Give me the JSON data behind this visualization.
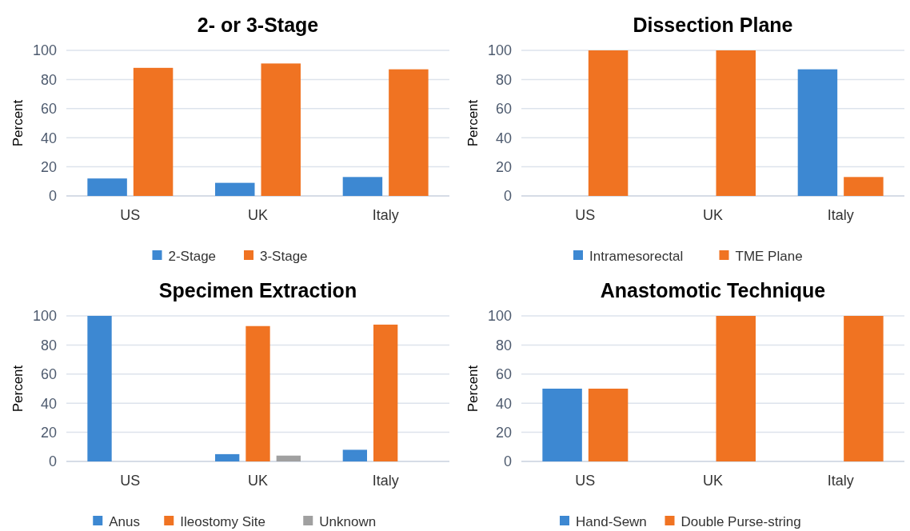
{
  "chart_data": [
    {
      "type": "bar",
      "title": "2- or 3-Stage",
      "ylabel": "Percent",
      "categories": [
        "US",
        "UK",
        "Italy"
      ],
      "series": [
        {
          "name": "2-Stage",
          "color": "#3d88d2",
          "values": [
            12,
            9,
            13
          ]
        },
        {
          "name": "3-Stage",
          "color": "#f07322",
          "values": [
            88,
            91,
            87
          ]
        }
      ],
      "ylim": [
        0,
        100
      ],
      "yticks": [
        0,
        20,
        40,
        60,
        80,
        100
      ],
      "grid": "y",
      "legend": "bottom"
    },
    {
      "type": "bar",
      "title": "Dissection Plane",
      "ylabel": "Percent",
      "categories": [
        "US",
        "UK",
        "Italy"
      ],
      "series": [
        {
          "name": "Intramesorectal",
          "color": "#3d88d2",
          "values": [
            0,
            0,
            87
          ]
        },
        {
          "name": "TME Plane",
          "color": "#f07322",
          "values": [
            100,
            100,
            13
          ]
        }
      ],
      "ylim": [
        0,
        100
      ],
      "yticks": [
        0,
        20,
        40,
        60,
        80,
        100
      ],
      "grid": "y",
      "legend": "bottom"
    },
    {
      "type": "bar",
      "title": "Specimen Extraction",
      "ylabel": "Percent",
      "categories": [
        "US",
        "UK",
        "Italy"
      ],
      "series": [
        {
          "name": "Anus",
          "color": "#3d88d2",
          "values": [
            100,
            5,
            8
          ]
        },
        {
          "name": "Ileostomy Site",
          "color": "#f07322",
          "values": [
            0,
            93,
            94
          ]
        },
        {
          "name": "Unknown",
          "color": "#a0a0a0",
          "values": [
            0,
            4,
            0
          ]
        }
      ],
      "ylim": [
        0,
        100
      ],
      "yticks": [
        0,
        20,
        40,
        60,
        80,
        100
      ],
      "grid": "y",
      "legend": "bottom"
    },
    {
      "type": "bar",
      "title": "Anastomotic Technique",
      "ylabel": "Percent",
      "categories": [
        "US",
        "UK",
        "Italy"
      ],
      "series": [
        {
          "name": "Hand-Sewn",
          "color": "#3d88d2",
          "values": [
            50,
            0,
            0
          ]
        },
        {
          "name": "Double Purse-string",
          "color": "#f07322",
          "values": [
            50,
            100,
            100
          ]
        }
      ],
      "ylim": [
        0,
        100
      ],
      "yticks": [
        0,
        20,
        40,
        60,
        80,
        100
      ],
      "grid": "y",
      "legend": "bottom"
    }
  ]
}
